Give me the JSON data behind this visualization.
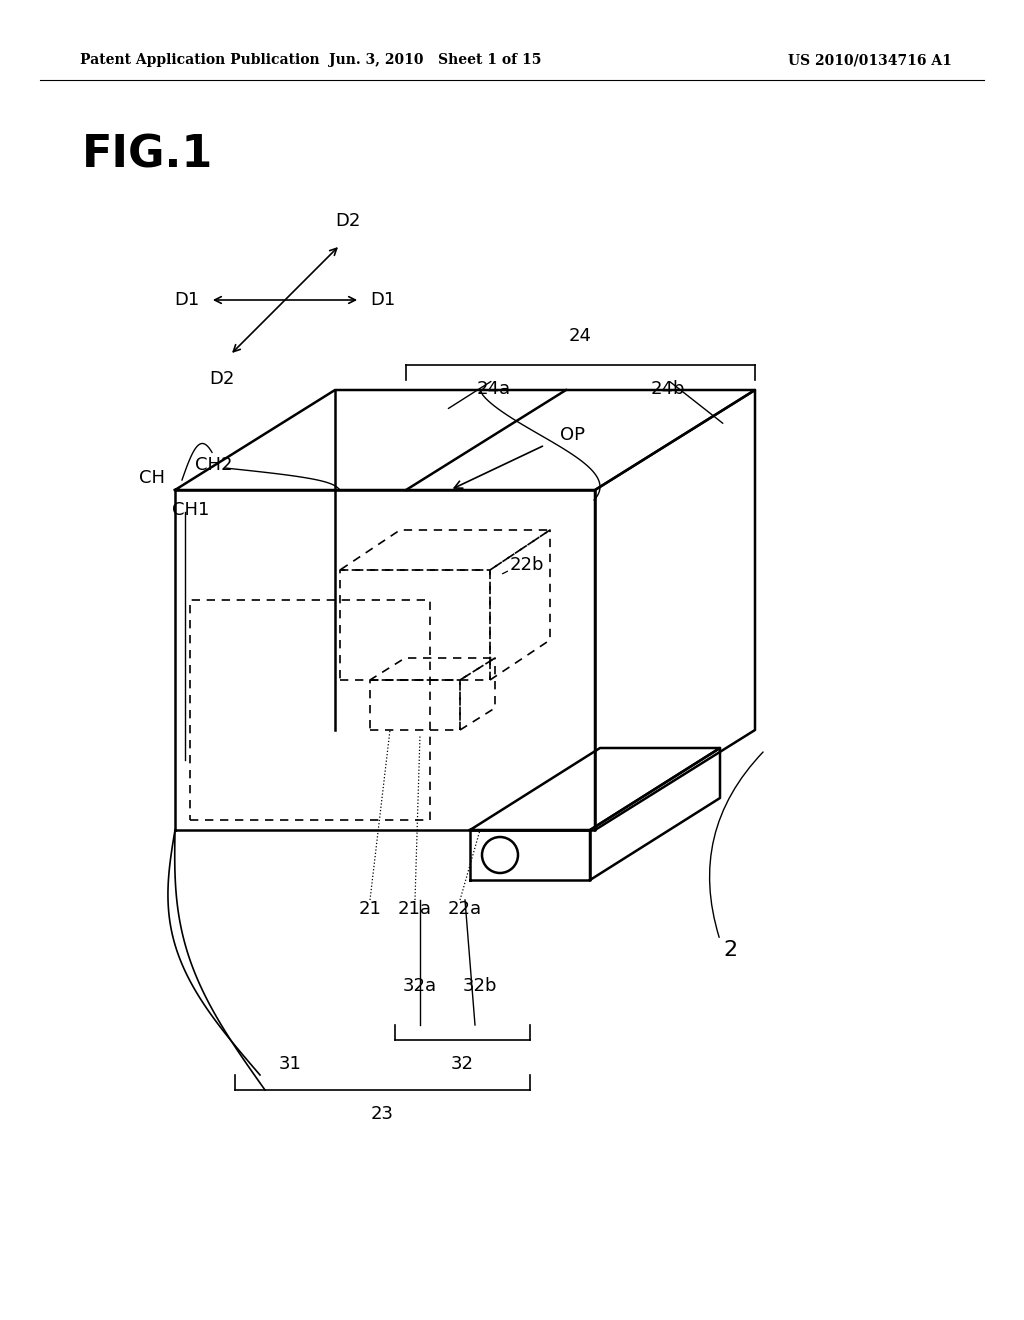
{
  "bg_color": "#ffffff",
  "header_left": "Patent Application Publication",
  "header_mid": "Jun. 3, 2010   Sheet 1 of 15",
  "header_right": "US 2010/0134716 A1",
  "fig_label": "FIG.1"
}
